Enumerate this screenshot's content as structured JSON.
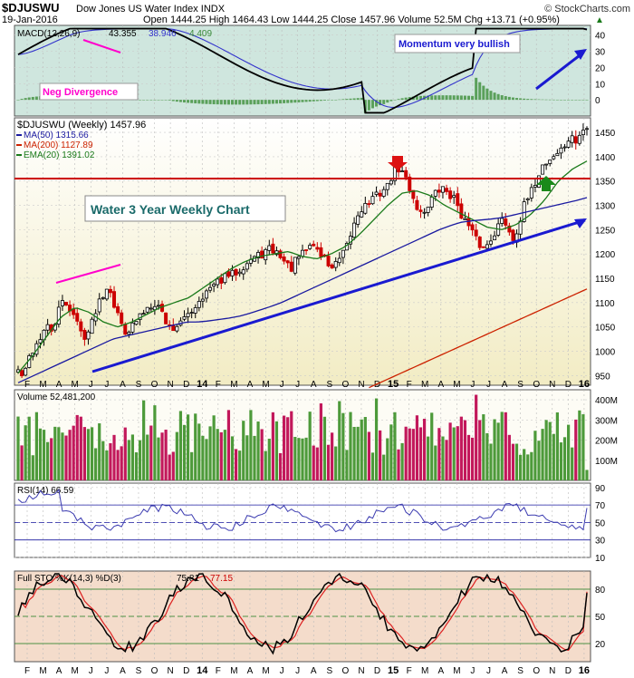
{
  "header": {
    "symbol": "$DJUSWU",
    "name": "Dow Jones US Water Index INDX",
    "source": "© StockCharts.com",
    "date": "19-Jan-2016",
    "ohlc": "Open 1444.25  High 1464.43  Low 1444.25  Close 1457.96  Volume 52.5M  Chg +13.71 (+0.95%)",
    "chg_arrow": "▲"
  },
  "colors": {
    "price_up": "#000000",
    "price_down": "#cc0000",
    "ma50": "#1a1aa0",
    "ma200": "#cc2200",
    "ema20": "#1a7a1a",
    "support": "#cc0000",
    "trendline": "#1a1ad0",
    "annotation_pink": "#ff00cc",
    "vol_up": "#4d9a3a",
    "vol_down": "#c2185b",
    "macd_bg": "#cfe6de",
    "price_bg": "#f2ecc4",
    "sto_bg": "#f4dccb"
  },
  "x_axis": [
    "F",
    "M",
    "A",
    "M",
    "J",
    "J",
    "A",
    "S",
    "O",
    "N",
    "D",
    "14",
    "F",
    "M",
    "A",
    "M",
    "J",
    "J",
    "A",
    "S",
    "O",
    "N",
    "D",
    "15",
    "F",
    "M",
    "A",
    "M",
    "J",
    "J",
    "A",
    "S",
    "O",
    "N",
    "D",
    "16"
  ],
  "macd_panel": {
    "label_prefix": "MACD(12,26,9)",
    "macd": "43.355",
    "signal": "38.946",
    "hist": "4.409",
    "y_ticks": [
      "40",
      "30",
      "20",
      "10",
      "0"
    ],
    "annotation_top": "Momentum very bullish",
    "annotation_left": "Neg Divergence"
  },
  "price_panel": {
    "title": "$DJUSWU (Weekly) 1457.96",
    "legend": [
      {
        "label": "MA(50) 1315.66"
      },
      {
        "label": "MA(200) 1127.89"
      },
      {
        "label": "EMA(20) 1391.02"
      }
    ],
    "y_ticks": [
      "1450",
      "1400",
      "1350",
      "1300",
      "1250",
      "1200",
      "1150",
      "1100",
      "1050",
      "1000",
      "950"
    ],
    "note": "Water 3 Year Weekly Chart"
  },
  "volume_panel": {
    "label": "Volume 52,481,200",
    "y_ticks": [
      "400M",
      "300M",
      "200M",
      "100M"
    ]
  },
  "rsi_panel": {
    "label": "RSI(14) 66.59",
    "y_ticks": [
      "90",
      "70",
      "50",
      "30",
      "10"
    ]
  },
  "sto_panel": {
    "label_prefix": "Full STO %K(14,3) %D(3)",
    "k": "75.81",
    "d": "77.15",
    "y_ticks": [
      "80",
      "50",
      "20"
    ]
  },
  "chart_data": {
    "type": "line",
    "title": "$DJUSWU (Weekly) 1457.96",
    "x_ticks": [
      "F",
      "M",
      "A",
      "M",
      "J",
      "J",
      "A",
      "S",
      "O",
      "N",
      "D",
      "14",
      "F",
      "M",
      "A",
      "M",
      "J",
      "J",
      "A",
      "S",
      "O",
      "N",
      "D",
      "15",
      "F",
      "M",
      "A",
      "M",
      "J",
      "J",
      "A",
      "S",
      "O",
      "N",
      "D",
      "16"
    ],
    "price_close": [
      960,
      945,
      990,
      1010,
      1030,
      1050,
      1040,
      1080,
      1105,
      1090,
      1070,
      1040,
      1030,
      1060,
      1100,
      1120,
      1140,
      1090,
      1060,
      1040,
      1050,
      1065,
      1080,
      1095,
      1100,
      1090,
      1060,
      1045,
      1055,
      1060,
      1080,
      1090,
      1110,
      1120,
      1130,
      1140,
      1150,
      1155,
      1160,
      1170,
      1180,
      1190,
      1195,
      1200,
      1210,
      1205,
      1200,
      1180,
      1170,
      1190,
      1200,
      1215,
      1220,
      1200,
      1190,
      1170,
      1180,
      1195,
      1220,
      1260,
      1290,
      1300,
      1310,
      1320,
      1330,
      1340,
      1370,
      1375,
      1360,
      1330,
      1300,
      1280,
      1300,
      1320,
      1330,
      1335,
      1320,
      1310,
      1280,
      1260,
      1240,
      1220,
      1210,
      1230,
      1250,
      1270,
      1260,
      1230,
      1260,
      1300,
      1320,
      1350,
      1380,
      1390,
      1400,
      1410,
      1420,
      1440,
      1430,
      1450,
      1458
    ],
    "ma50": [
      935,
      945,
      955,
      965,
      975,
      985,
      995,
      1005,
      1015,
      1025,
      1030,
      1035,
      1040,
      1045,
      1050,
      1055,
      1060,
      1060,
      1062,
      1065,
      1068,
      1072,
      1078,
      1085,
      1092,
      1100,
      1110,
      1120,
      1130,
      1140,
      1150,
      1160,
      1170,
      1180,
      1190,
      1200,
      1210,
      1220,
      1230,
      1240,
      1250,
      1258,
      1265,
      1268,
      1270,
      1272,
      1275,
      1280,
      1285,
      1290,
      1295,
      1300,
      1305,
      1310,
      1316
    ],
    "ma200": [
      920,
      940,
      960,
      980,
      1000,
      1020,
      1040,
      1060,
      1080,
      1100,
      1115,
      1128
    ],
    "ema20": [
      955,
      990,
      1030,
      1070,
      1090,
      1080,
      1060,
      1050,
      1060,
      1075,
      1090,
      1100,
      1110,
      1130,
      1150,
      1170,
      1185,
      1195,
      1200,
      1205,
      1195,
      1190,
      1200,
      1215,
      1240,
      1270,
      1300,
      1325,
      1330,
      1320,
      1300,
      1285,
      1270,
      1255,
      1250,
      1260,
      1280,
      1310,
      1350,
      1375,
      1391
    ],
    "support_level": 1355,
    "volume_range_M": [
      0,
      450
    ],
    "ylim_price": [
      930,
      1480
    ],
    "macd_ylim": [
      -10,
      46
    ],
    "rsi_ylim": [
      10,
      95
    ],
    "sto_ylim": [
      0,
      100
    ],
    "stochastic_k_last": 75.81,
    "stochastic_d_last": 77.15,
    "rsi_last": 66.59
  }
}
